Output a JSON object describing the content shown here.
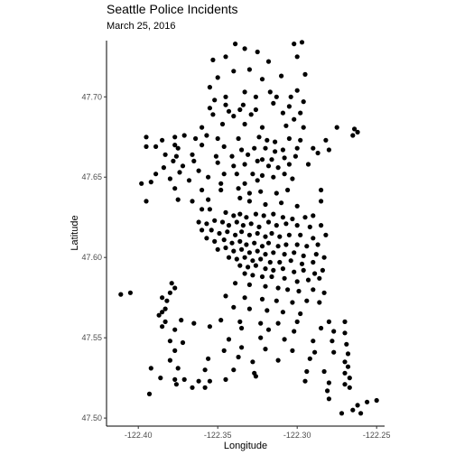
{
  "chart_data": {
    "type": "scatter",
    "title": "Seattle Police Incidents",
    "subtitle": "March 25, 2016",
    "xlabel": "Longitude",
    "ylabel": "Latitude",
    "xlim": [
      -122.42,
      -122.245
    ],
    "ylim": [
      47.495,
      47.735
    ],
    "xticks": [
      -122.4,
      -122.35,
      -122.3,
      -122.25
    ],
    "xtick_labels": [
      "-122.40",
      "-122.35",
      "-122.30",
      "-122.25"
    ],
    "yticks": [
      47.5,
      47.55,
      47.6,
      47.65,
      47.7
    ],
    "ytick_labels": [
      "47.50",
      "47.55",
      "47.60",
      "47.65",
      "47.70"
    ],
    "grid": false,
    "point_color": "#000000",
    "points": [
      [
        -122.339,
        47.733
      ],
      [
        -122.333,
        47.73
      ],
      [
        -122.325,
        47.728
      ],
      [
        -122.345,
        47.725
      ],
      [
        -122.353,
        47.723
      ],
      [
        -122.318,
        47.722
      ],
      [
        -122.302,
        47.733
      ],
      [
        -122.297,
        47.734
      ],
      [
        -122.3,
        47.725
      ],
      [
        -122.34,
        47.716
      ],
      [
        -122.35,
        47.712
      ],
      [
        -122.33,
        47.717
      ],
      [
        -122.322,
        47.711
      ],
      [
        -122.31,
        47.713
      ],
      [
        -122.295,
        47.714
      ],
      [
        -122.3,
        47.704
      ],
      [
        -122.355,
        47.706
      ],
      [
        -122.345,
        47.7
      ],
      [
        -122.333,
        47.703
      ],
      [
        -122.326,
        47.7
      ],
      [
        -122.317,
        47.703
      ],
      [
        -122.313,
        47.7
      ],
      [
        -122.304,
        47.7
      ],
      [
        -122.352,
        47.698
      ],
      [
        -122.345,
        47.695
      ],
      [
        -122.334,
        47.695
      ],
      [
        -122.326,
        47.692
      ],
      [
        -122.315,
        47.696
      ],
      [
        -122.305,
        47.694
      ],
      [
        -122.296,
        47.697
      ],
      [
        -122.298,
        47.69
      ],
      [
        -122.355,
        47.693
      ],
      [
        -122.343,
        47.691
      ],
      [
        -122.336,
        47.692
      ],
      [
        -122.329,
        47.689
      ],
      [
        -122.309,
        47.69
      ],
      [
        -122.302,
        47.686
      ],
      [
        -122.353,
        47.689
      ],
      [
        -122.34,
        47.688
      ],
      [
        -122.36,
        47.681
      ],
      [
        -122.347,
        47.683
      ],
      [
        -122.333,
        47.683
      ],
      [
        -122.322,
        47.681
      ],
      [
        -122.307,
        47.682
      ],
      [
        -122.296,
        47.681
      ],
      [
        -122.275,
        47.681
      ],
      [
        -122.264,
        47.68
      ],
      [
        -122.262,
        47.678
      ],
      [
        -122.265,
        47.676
      ],
      [
        -122.395,
        47.675
      ],
      [
        -122.385,
        47.673
      ],
      [
        -122.377,
        47.675
      ],
      [
        -122.371,
        47.676
      ],
      [
        -122.364,
        47.674
      ],
      [
        -122.357,
        47.676
      ],
      [
        -122.35,
        47.674
      ],
      [
        -122.337,
        47.674
      ],
      [
        -122.324,
        47.675
      ],
      [
        -122.319,
        47.673
      ],
      [
        -122.314,
        47.672
      ],
      [
        -122.305,
        47.674
      ],
      [
        -122.298,
        47.673
      ],
      [
        -122.282,
        47.673
      ],
      [
        -122.377,
        47.67
      ],
      [
        -122.389,
        47.669
      ],
      [
        -122.395,
        47.669
      ],
      [
        -122.375,
        47.668
      ],
      [
        -122.36,
        47.67
      ],
      [
        -122.346,
        47.669
      ],
      [
        -122.335,
        47.667
      ],
      [
        -122.327,
        47.668
      ],
      [
        -122.32,
        47.668
      ],
      [
        -122.314,
        47.666
      ],
      [
        -122.309,
        47.667
      ],
      [
        -122.3,
        47.668
      ],
      [
        -122.29,
        47.668
      ],
      [
        -122.28,
        47.667
      ],
      [
        -122.383,
        47.664
      ],
      [
        -122.376,
        47.663
      ],
      [
        -122.366,
        47.664
      ],
      [
        -122.351,
        47.663
      ],
      [
        -122.341,
        47.663
      ],
      [
        -122.331,
        47.664
      ],
      [
        -122.322,
        47.661
      ],
      [
        -122.316,
        47.661
      ],
      [
        -122.308,
        47.662
      ],
      [
        -122.301,
        47.663
      ],
      [
        -122.287,
        47.665
      ],
      [
        -122.378,
        47.66
      ],
      [
        -122.365,
        47.66
      ],
      [
        -122.35,
        47.659
      ],
      [
        -122.34,
        47.657
      ],
      [
        -122.333,
        47.658
      ],
      [
        -122.325,
        47.66
      ],
      [
        -122.318,
        47.657
      ],
      [
        -122.312,
        47.656
      ],
      [
        -122.305,
        47.658
      ],
      [
        -122.293,
        47.658
      ],
      [
        -122.372,
        47.657
      ],
      [
        -122.384,
        47.656
      ],
      [
        -122.389,
        47.652
      ],
      [
        -122.374,
        47.653
      ],
      [
        -122.362,
        47.654
      ],
      [
        -122.346,
        47.652
      ],
      [
        -122.338,
        47.652
      ],
      [
        -122.328,
        47.652
      ],
      [
        -122.322,
        47.651
      ],
      [
        -122.315,
        47.65
      ],
      [
        -122.308,
        47.652
      ],
      [
        -122.38,
        47.649
      ],
      [
        -122.368,
        47.648
      ],
      [
        -122.356,
        47.65
      ],
      [
        -122.348,
        47.646
      ],
      [
        -122.333,
        47.646
      ],
      [
        -122.325,
        47.648
      ],
      [
        -122.303,
        47.649
      ],
      [
        -122.398,
        47.646
      ],
      [
        -122.392,
        47.647
      ],
      [
        -122.377,
        47.643
      ],
      [
        -122.36,
        47.642
      ],
      [
        -122.348,
        47.642
      ],
      [
        -122.337,
        47.643
      ],
      [
        -122.33,
        47.64
      ],
      [
        -122.323,
        47.641
      ],
      [
        -122.313,
        47.64
      ],
      [
        -122.306,
        47.642
      ],
      [
        -122.285,
        47.642
      ],
      [
        -122.395,
        47.635
      ],
      [
        -122.375,
        47.636
      ],
      [
        -122.366,
        47.635
      ],
      [
        -122.356,
        47.636
      ],
      [
        -122.336,
        47.637
      ],
      [
        -122.33,
        47.635
      ],
      [
        -122.32,
        47.633
      ],
      [
        -122.31,
        47.634
      ],
      [
        -122.3,
        47.632
      ],
      [
        -122.285,
        47.635
      ],
      [
        -122.36,
        47.63
      ],
      [
        -122.355,
        47.63
      ],
      [
        -122.345,
        47.628
      ],
      [
        -122.34,
        47.626
      ],
      [
        -122.336,
        47.627
      ],
      [
        -122.332,
        47.625
      ],
      [
        -122.326,
        47.627
      ],
      [
        -122.321,
        47.626
      ],
      [
        -122.315,
        47.627
      ],
      [
        -122.309,
        47.625
      ],
      [
        -122.303,
        47.624
      ],
      [
        -122.295,
        47.625
      ],
      [
        -122.29,
        47.626
      ],
      [
        -122.362,
        47.622
      ],
      [
        -122.357,
        47.621
      ],
      [
        -122.352,
        47.623
      ],
      [
        -122.347,
        47.622
      ],
      [
        -122.343,
        47.62
      ],
      [
        -122.338,
        47.622
      ],
      [
        -122.334,
        47.62
      ],
      [
        -122.329,
        47.621
      ],
      [
        -122.324,
        47.619
      ],
      [
        -122.318,
        47.622
      ],
      [
        -122.313,
        47.62
      ],
      [
        -122.307,
        47.621
      ],
      [
        -122.3,
        47.62
      ],
      [
        -122.292,
        47.619
      ],
      [
        -122.285,
        47.62
      ],
      [
        -122.36,
        47.617
      ],
      [
        -122.354,
        47.617
      ],
      [
        -122.349,
        47.615
      ],
      [
        -122.344,
        47.616
      ],
      [
        -122.339,
        47.614
      ],
      [
        -122.335,
        47.616
      ],
      [
        -122.33,
        47.614
      ],
      [
        -122.325,
        47.615
      ],
      [
        -122.32,
        47.613
      ],
      [
        -122.316,
        47.615
      ],
      [
        -122.311,
        47.613
      ],
      [
        -122.305,
        47.614
      ],
      [
        -122.298,
        47.614
      ],
      [
        -122.29,
        47.612
      ],
      [
        -122.282,
        47.614
      ],
      [
        -122.357,
        47.612
      ],
      [
        -122.352,
        47.61
      ],
      [
        -122.346,
        47.611
      ],
      [
        -122.341,
        47.609
      ],
      [
        -122.336,
        47.61
      ],
      [
        -122.332,
        47.608
      ],
      [
        -122.327,
        47.609
      ],
      [
        -122.322,
        47.607
      ],
      [
        -122.318,
        47.609
      ],
      [
        -122.312,
        47.607
      ],
      [
        -122.307,
        47.608
      ],
      [
        -122.3,
        47.608
      ],
      [
        -122.294,
        47.607
      ],
      [
        -122.287,
        47.608
      ],
      [
        -122.35,
        47.605
      ],
      [
        -122.345,
        47.606
      ],
      [
        -122.34,
        47.604
      ],
      [
        -122.335,
        47.605
      ],
      [
        -122.33,
        47.603
      ],
      [
        -122.325,
        47.604
      ],
      [
        -122.32,
        47.602
      ],
      [
        -122.315,
        47.603
      ],
      [
        -122.308,
        47.602
      ],
      [
        -122.302,
        47.603
      ],
      [
        -122.296,
        47.601
      ],
      [
        -122.288,
        47.602
      ],
      [
        -122.283,
        47.6
      ],
      [
        -122.343,
        47.6
      ],
      [
        -122.338,
        47.599
      ],
      [
        -122.333,
        47.6
      ],
      [
        -122.328,
        47.598
      ],
      [
        -122.323,
        47.599
      ],
      [
        -122.317,
        47.597
      ],
      [
        -122.311,
        47.597
      ],
      [
        -122.304,
        47.598
      ],
      [
        -122.297,
        47.596
      ],
      [
        -122.29,
        47.597
      ],
      [
        -122.336,
        47.595
      ],
      [
        -122.331,
        47.594
      ],
      [
        -122.326,
        47.595
      ],
      [
        -122.32,
        47.593
      ],
      [
        -122.315,
        47.592
      ],
      [
        -122.309,
        47.593
      ],
      [
        -122.302,
        47.591
      ],
      [
        -122.296,
        47.592
      ],
      [
        -122.289,
        47.59
      ],
      [
        -122.284,
        47.592
      ],
      [
        -122.333,
        47.59
      ],
      [
        -122.328,
        47.589
      ],
      [
        -122.322,
        47.588
      ],
      [
        -122.316,
        47.588
      ],
      [
        -122.308,
        47.587
      ],
      [
        -122.3,
        47.585
      ],
      [
        -122.293,
        47.586
      ],
      [
        -122.286,
        47.587
      ],
      [
        -122.379,
        47.584
      ],
      [
        -122.377,
        47.581
      ],
      [
        -122.38,
        47.578
      ],
      [
        -122.339,
        47.584
      ],
      [
        -122.33,
        47.583
      ],
      [
        -122.32,
        47.582
      ],
      [
        -122.312,
        47.581
      ],
      [
        -122.306,
        47.58
      ],
      [
        -122.299,
        47.579
      ],
      [
        -122.29,
        47.58
      ],
      [
        -122.283,
        47.578
      ],
      [
        -122.405,
        47.578
      ],
      [
        -122.411,
        47.577
      ],
      [
        -122.385,
        47.575
      ],
      [
        -122.382,
        47.573
      ],
      [
        -122.345,
        47.576
      ],
      [
        -122.333,
        47.575
      ],
      [
        -122.322,
        47.574
      ],
      [
        -122.313,
        47.573
      ],
      [
        -122.303,
        47.572
      ],
      [
        -122.294,
        47.573
      ],
      [
        -122.286,
        47.572
      ],
      [
        -122.383,
        47.568
      ],
      [
        -122.385,
        47.566
      ],
      [
        -122.387,
        47.564
      ],
      [
        -122.34,
        47.569
      ],
      [
        -122.33,
        47.568
      ],
      [
        -122.319,
        47.567
      ],
      [
        -122.309,
        47.566
      ],
      [
        -122.298,
        47.565
      ],
      [
        -122.383,
        47.56
      ],
      [
        -122.385,
        47.557
      ],
      [
        -122.373,
        47.561
      ],
      [
        -122.365,
        47.559
      ],
      [
        -122.348,
        47.561
      ],
      [
        -122.336,
        47.56
      ],
      [
        -122.323,
        47.559
      ],
      [
        -122.312,
        47.559
      ],
      [
        -122.3,
        47.56
      ],
      [
        -122.28,
        47.56
      ],
      [
        -122.27,
        47.56
      ],
      [
        -122.377,
        47.555
      ],
      [
        -122.355,
        47.557
      ],
      [
        -122.335,
        47.556
      ],
      [
        -122.318,
        47.555
      ],
      [
        -122.302,
        47.554
      ],
      [
        -122.285,
        47.556
      ],
      [
        -122.277,
        47.554
      ],
      [
        -122.27,
        47.553
      ],
      [
        -122.38,
        47.548
      ],
      [
        -122.372,
        47.547
      ],
      [
        -122.343,
        47.549
      ],
      [
        -122.323,
        47.55
      ],
      [
        -122.308,
        47.549
      ],
      [
        -122.29,
        47.548
      ],
      [
        -122.278,
        47.548
      ],
      [
        -122.269,
        47.546
      ],
      [
        -122.377,
        47.542
      ],
      [
        -122.346,
        47.542
      ],
      [
        -122.335,
        47.544
      ],
      [
        -122.32,
        47.543
      ],
      [
        -122.303,
        47.542
      ],
      [
        -122.289,
        47.541
      ],
      [
        -122.277,
        47.541
      ],
      [
        -122.268,
        47.54
      ],
      [
        -122.38,
        47.536
      ],
      [
        -122.356,
        47.537
      ],
      [
        -122.337,
        47.538
      ],
      [
        -122.328,
        47.535
      ],
      [
        -122.312,
        47.536
      ],
      [
        -122.292,
        47.537
      ],
      [
        -122.27,
        47.535
      ],
      [
        -122.268,
        47.532
      ],
      [
        -122.392,
        47.531
      ],
      [
        -122.375,
        47.531
      ],
      [
        -122.358,
        47.53
      ],
      [
        -122.34,
        47.53
      ],
      [
        -122.327,
        47.528
      ],
      [
        -122.294,
        47.529
      ],
      [
        -122.283,
        47.529
      ],
      [
        -122.27,
        47.528
      ],
      [
        -122.267,
        47.525
      ],
      [
        -122.386,
        47.525
      ],
      [
        -122.377,
        47.524
      ],
      [
        -122.371,
        47.524
      ],
      [
        -122.362,
        47.523
      ],
      [
        -122.355,
        47.523
      ],
      [
        -122.345,
        47.524
      ],
      [
        -122.326,
        47.526
      ],
      [
        -122.295,
        47.523
      ],
      [
        -122.28,
        47.522
      ],
      [
        -122.27,
        47.521
      ],
      [
        -122.267,
        47.519
      ],
      [
        -122.376,
        47.521
      ],
      [
        -122.366,
        47.519
      ],
      [
        -122.358,
        47.519
      ],
      [
        -122.281,
        47.517
      ],
      [
        -122.393,
        47.515
      ],
      [
        -122.28,
        47.512
      ],
      [
        -122.262,
        47.508
      ],
      [
        -122.256,
        47.51
      ],
      [
        -122.25,
        47.511
      ],
      [
        -122.265,
        47.505
      ],
      [
        -122.26,
        47.503
      ],
      [
        -122.272,
        47.503
      ]
    ]
  }
}
